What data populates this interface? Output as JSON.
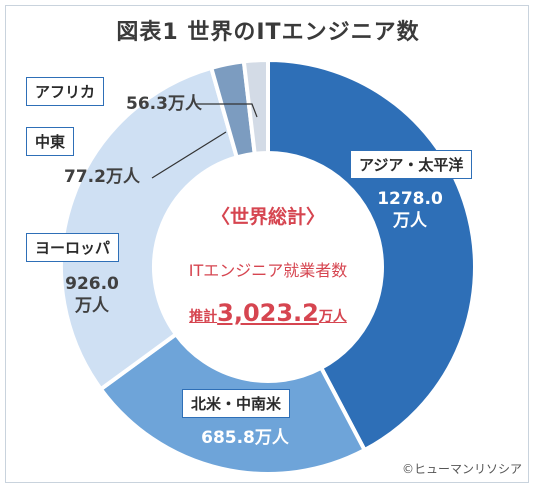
{
  "chart_data": {
    "type": "pie",
    "title": "図表1 世界のITエンジニア数",
    "center": {
      "title": "〈世界総計〉",
      "subtitle": "ITエンジニア就業者数",
      "total_prefix": "推計",
      "total_value": "3,023.2",
      "total_unit": "万人"
    },
    "slices": [
      {
        "label": "アジア・太平洋",
        "value": 1278.0,
        "value_text": "1278.0",
        "unit": "万人",
        "color": "#2e6fb7"
      },
      {
        "label": "北米・中南米",
        "value": 685.8,
        "value_text": "685.8万人",
        "unit": "",
        "color": "#6ea4d9"
      },
      {
        "label": "ヨーロッパ",
        "value": 926.0,
        "value_text": "926.0",
        "unit": "万人",
        "color": "#cfe0f3"
      },
      {
        "label": "中東",
        "value": 77.2,
        "value_text": "77.2万人",
        "unit": "",
        "color": "#7c9cc0"
      },
      {
        "label": "アフリカ",
        "value": 56.3,
        "value_text": "56.3万人",
        "unit": "",
        "color": "#d3dbe6"
      }
    ]
  },
  "credit": "©ヒューマンリソシア"
}
